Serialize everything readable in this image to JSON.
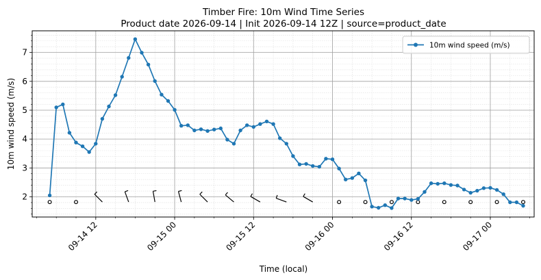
{
  "chart_data": {
    "type": "line",
    "title_line1": "Timber Fire: 10m Wind Time Series",
    "title_line2": "Product date 2026-09-14 | Init 2026-09-14 12Z | source=product_date",
    "xlabel": "Time (local)",
    "ylabel": "10m wind speed (m/s)",
    "ylim": [
      1.3,
      7.75
    ],
    "xlim": [
      "2026-09-14 02:20",
      "2026-09-17 06:40"
    ],
    "grid": {
      "major": true,
      "minor": true
    },
    "legend_position": "top-right",
    "x_tick_labels": [
      "09-14 12",
      "09-15 00",
      "09-15 12",
      "09-16 00",
      "09-16 12",
      "09-17 00"
    ],
    "x_ticks": [
      "2026-09-14 12:00",
      "2026-09-15 00:00",
      "2026-09-15 12:00",
      "2026-09-16 00:00",
      "2026-09-16 12:00",
      "2026-09-17 00:00"
    ],
    "y_ticks": [
      2,
      3,
      4,
      5,
      6,
      7
    ],
    "series": [
      {
        "name": "10m wind speed (m/s)",
        "color": "#1f77b4",
        "x_start": "2026-09-14 05:00",
        "x_step_hours": 1,
        "values": [
          2.05,
          5.1,
          5.2,
          4.22,
          3.88,
          3.75,
          3.55,
          3.84,
          4.7,
          5.13,
          5.52,
          6.16,
          6.81,
          7.46,
          6.99,
          6.58,
          6.01,
          5.54,
          5.32,
          5.01,
          4.46,
          4.48,
          4.3,
          4.34,
          4.28,
          4.33,
          4.37,
          3.98,
          3.84,
          4.3,
          4.48,
          4.42,
          4.52,
          4.61,
          4.52,
          4.03,
          3.84,
          3.41,
          3.12,
          3.14,
          3.07,
          3.04,
          3.32,
          3.3,
          2.98,
          2.6,
          2.65,
          2.81,
          2.57,
          1.66,
          1.62,
          1.71,
          1.61,
          1.94,
          1.94,
          1.89,
          1.93,
          2.17,
          2.47,
          2.45,
          2.47,
          2.41,
          2.39,
          2.25,
          2.14,
          2.21,
          2.3,
          2.31,
          2.24,
          2.09,
          1.81,
          1.81,
          1.69
        ]
      }
    ],
    "barbs": {
      "y": 1.82,
      "color": "#000000",
      "items": [
        {
          "t": "2026-09-14 05:00",
          "calm": true
        },
        {
          "t": "2026-09-14 09:00",
          "calm": true
        },
        {
          "t": "2026-09-14 13:00",
          "dir": 315
        },
        {
          "t": "2026-09-14 17:00",
          "dir": 340
        },
        {
          "t": "2026-09-14 21:00",
          "dir": 350
        },
        {
          "t": "2026-09-15 01:00",
          "dir": 345
        },
        {
          "t": "2026-09-15 05:00",
          "dir": 315
        },
        {
          "t": "2026-09-15 09:00",
          "dir": 310
        },
        {
          "t": "2026-09-15 13:00",
          "dir": 300
        },
        {
          "t": "2026-09-15 17:00",
          "dir": 290
        },
        {
          "t": "2026-09-15 21:00",
          "dir": 300
        },
        {
          "t": "2026-09-16 01:00",
          "calm": true
        },
        {
          "t": "2026-09-16 05:00",
          "calm": true
        },
        {
          "t": "2026-09-16 09:00",
          "calm": true
        },
        {
          "t": "2026-09-16 13:00",
          "calm": true
        },
        {
          "t": "2026-09-16 17:00",
          "calm": true
        },
        {
          "t": "2026-09-16 21:00",
          "calm": true
        },
        {
          "t": "2026-09-17 01:00",
          "calm": true
        },
        {
          "t": "2026-09-17 05:00",
          "calm": true
        }
      ]
    }
  }
}
